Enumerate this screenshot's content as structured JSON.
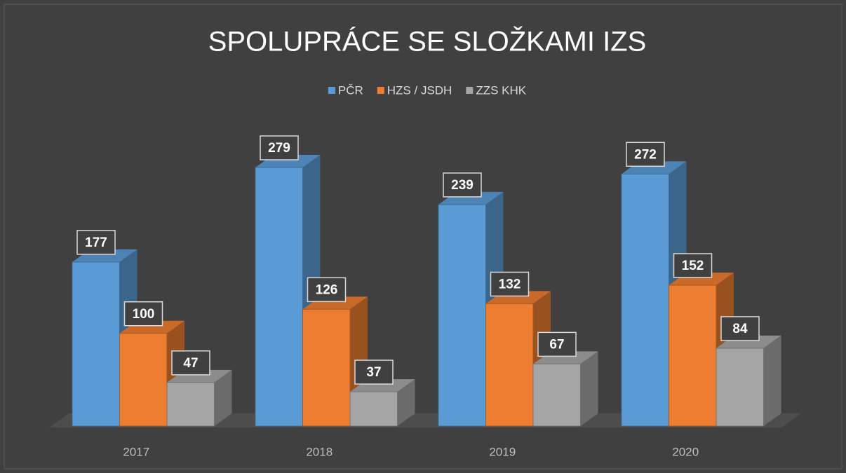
{
  "chart_data": {
    "type": "bar3d",
    "title": "SPOLUPRÁCE SE SLOŽKAMI IZS",
    "categories": [
      "2017",
      "2018",
      "2019",
      "2020"
    ],
    "series": [
      {
        "name": "PČR",
        "color": "#5b9bd5",
        "values": [
          177,
          279,
          239,
          272
        ]
      },
      {
        "name": "HZS / JSDH",
        "color": "#ed7d31",
        "values": [
          100,
          126,
          132,
          152
        ]
      },
      {
        "name": "ZZS KHK",
        "color": "#a5a5a5",
        "values": [
          47,
          37,
          67,
          84
        ]
      }
    ],
    "legend": "top"
  }
}
